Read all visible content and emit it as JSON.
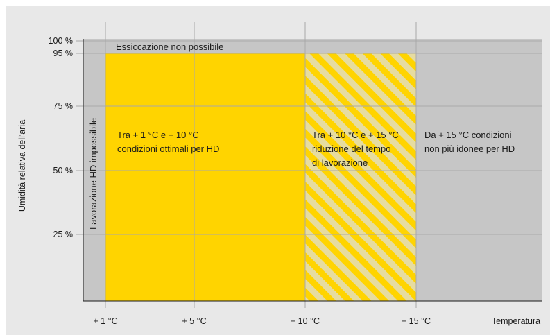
{
  "chart_data": {
    "type": "area",
    "title": "",
    "xlabel": "Temperatura",
    "ylabel": "Umidità relativa dell'aria",
    "x_ticks": [
      "+ 1 °C",
      "+ 5 °C",
      "+ 10 °C",
      "+ 15 °C"
    ],
    "x_tick_values": [
      1,
      5,
      10,
      15
    ],
    "y_ticks": [
      "25 %",
      "50 %",
      "75 %",
      "95 %",
      "100 %"
    ],
    "y_tick_values": [
      25,
      50,
      75,
      95,
      100
    ],
    "xlim": [
      0,
      22
    ],
    "ylim": [
      0,
      100
    ],
    "grid": true,
    "zones": [
      {
        "name": "Lavorazione HD impossibile",
        "x_from": 0,
        "x_to": 1,
        "y_from": 0,
        "y_to": 100,
        "color": "#c6c6c6",
        "pattern": "solid"
      },
      {
        "name": "Essiccazione non possibile",
        "x_from": 1,
        "x_to": 22,
        "y_from": 95,
        "y_to": 100,
        "color": "#c6c6c6",
        "pattern": "solid"
      },
      {
        "name": "Tra + 1 °C e + 10 °C condizioni ottimali per HD",
        "x_from": 1,
        "x_to": 10,
        "y_from": 0,
        "y_to": 95,
        "color": "#ffd400",
        "pattern": "solid"
      },
      {
        "name": "Tra + 10 °C e + 15 °C riduzione del tempo di lavorazione",
        "x_from": 10,
        "x_to": 15,
        "y_from": 0,
        "y_to": 95,
        "color": "#ffd400",
        "pattern": "stripes"
      },
      {
        "name": "Da + 15 °C condizioni non più idonee per HD",
        "x_from": 15,
        "x_to": 22,
        "y_from": 0,
        "y_to": 95,
        "color": "#c6c6c6",
        "pattern": "solid"
      }
    ]
  },
  "labels": {
    "essiccazione": "Essiccazione non possibile",
    "lavorazione_impossibile": "Lavorazione HD impossibile",
    "optimal_line1": "Tra + 1 °C e + 10 °C",
    "optimal_line2": "condizioni ottimali per HD",
    "reduced_line1": "Tra + 10 °C e + 15 °C",
    "reduced_line2": "riduzione del tempo",
    "reduced_line3": "di lavorazione",
    "unsuitable_line1": "Da + 15 °C condizioni",
    "unsuitable_line2": "non più idonee per HD"
  },
  "colors": {
    "yellow": "#ffd400",
    "stripe_light": "#e6dca0",
    "grey_zone": "#c6c6c6",
    "background": "#e8e8e8",
    "grid": "#a9a9a9"
  }
}
